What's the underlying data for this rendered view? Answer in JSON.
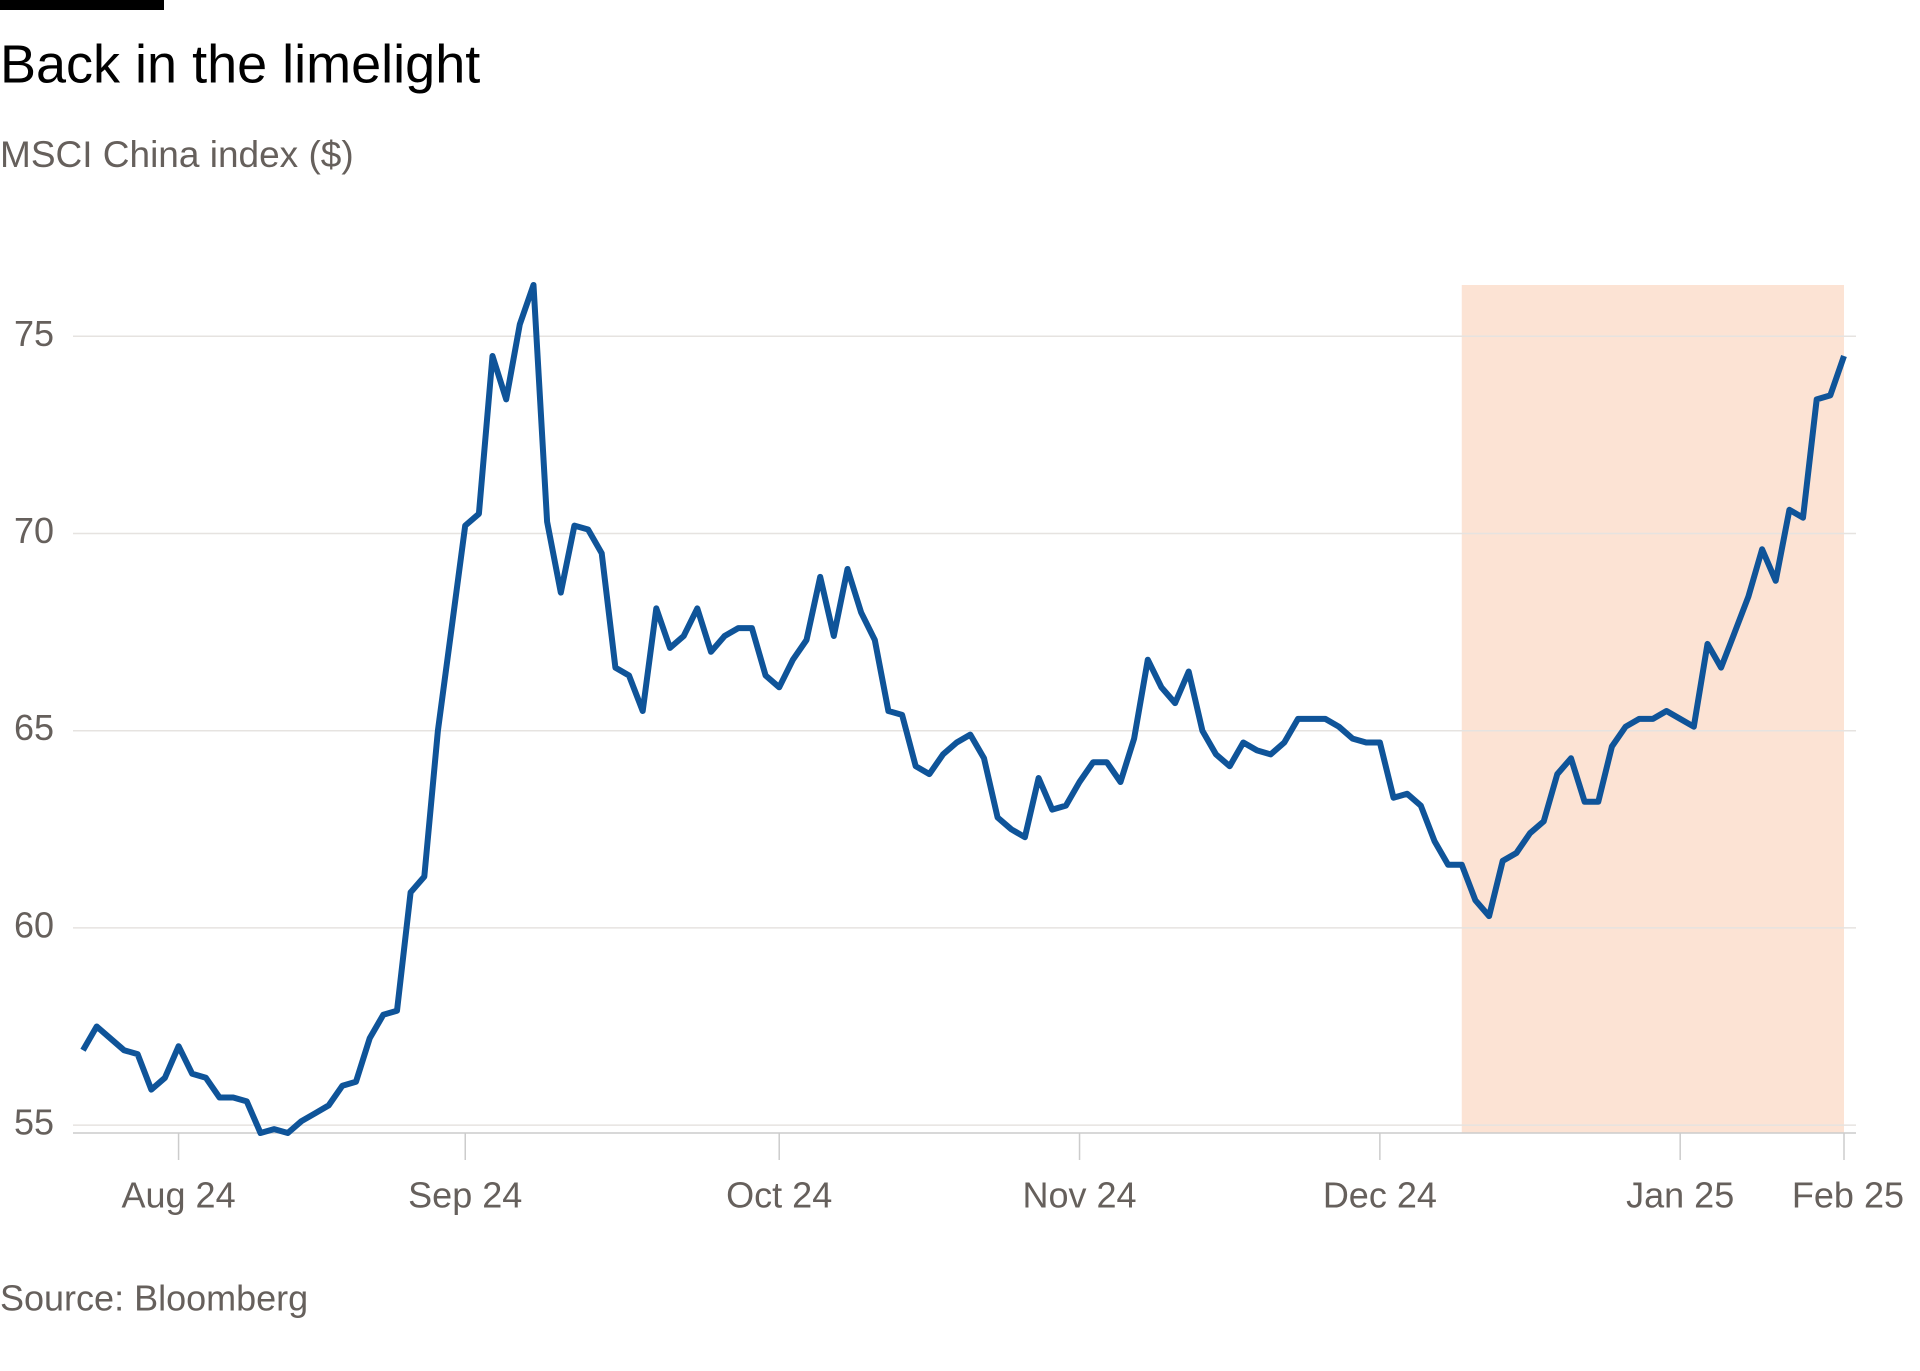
{
  "chart_data": {
    "type": "line",
    "title": "Back in the limelight",
    "subtitle": "MSCI China index ($)",
    "source": "Source: Bloomberg",
    "categories": [
      null,
      null,
      null,
      null,
      null,
      null,
      null,
      "Aug 24",
      null,
      null,
      null,
      null,
      null,
      null,
      null,
      null,
      null,
      null,
      null,
      null,
      null,
      null,
      null,
      null,
      null,
      null,
      null,
      null,
      "Sep 24",
      null,
      null,
      null,
      null,
      null,
      null,
      null,
      null,
      null,
      null,
      null,
      null,
      null,
      null,
      null,
      null,
      null,
      null,
      null,
      null,
      null,
      null,
      "Oct 24",
      null,
      null,
      null,
      null,
      null,
      null,
      null,
      null,
      null,
      null,
      null,
      null,
      null,
      null,
      null,
      null,
      null,
      null,
      null,
      null,
      null,
      "Nov 24",
      null,
      null,
      null,
      null,
      null,
      null,
      null,
      null,
      null,
      null,
      null,
      null,
      null,
      null,
      null,
      null,
      null,
      null,
      null,
      null,
      null,
      "Dec 24",
      null,
      null,
      null,
      null,
      null,
      null,
      null,
      null,
      null,
      null,
      null,
      null,
      null,
      null,
      null,
      null,
      null,
      null,
      null,
      null,
      null,
      "Jan 25",
      null,
      null,
      null,
      null,
      null,
      null,
      null,
      null,
      null,
      null,
      null,
      "Feb 25"
    ],
    "series": [
      {
        "name": "MSCI China index",
        "color": "#0f5499",
        "values": [
          56.9,
          57.5,
          57.2,
          56.9,
          56.8,
          55.9,
          56.2,
          57.0,
          56.3,
          56.2,
          55.7,
          55.7,
          55.6,
          54.8,
          54.9,
          54.8,
          55.1,
          55.3,
          55.5,
          56.0,
          56.1,
          57.2,
          57.8,
          57.9,
          60.9,
          61.3,
          65.0,
          67.6,
          70.2,
          70.5,
          74.5,
          73.4,
          75.3,
          76.3,
          70.3,
          68.5,
          70.2,
          70.1,
          69.5,
          66.6,
          66.4,
          65.5,
          68.1,
          67.1,
          67.4,
          68.1,
          67.0,
          67.4,
          67.6,
          67.6,
          66.4,
          66.1,
          66.8,
          67.3,
          68.9,
          67.4,
          69.1,
          68.0,
          67.3,
          65.5,
          65.4,
          64.1,
          63.9,
          64.4,
          64.7,
          64.9,
          64.3,
          62.8,
          62.5,
          62.3,
          63.8,
          63.0,
          63.1,
          63.7,
          64.2,
          64.2,
          63.7,
          64.8,
          66.8,
          66.1,
          65.7,
          66.5,
          65.0,
          64.4,
          64.1,
          64.7,
          64.5,
          64.4,
          64.7,
          65.3,
          65.3,
          65.3,
          65.1,
          64.8,
          64.7,
          64.7,
          63.3,
          63.4,
          63.1,
          62.2,
          61.6,
          61.6,
          60.7,
          60.3,
          61.7,
          61.9,
          62.4,
          62.7,
          63.9,
          64.3,
          63.2,
          63.2,
          64.6,
          65.1,
          65.3,
          65.3,
          65.5,
          65.3,
          65.1,
          67.2,
          66.6,
          67.5,
          68.4,
          69.6,
          68.8,
          70.6,
          70.4,
          73.4,
          73.5,
          74.5
        ]
      }
    ],
    "ylim": [
      54.8,
      76.3
    ],
    "yticks": [
      55,
      60,
      65,
      70,
      75
    ],
    "grid": true,
    "highlight": {
      "from": 101,
      "to": 129,
      "color": "#fce3d4"
    }
  }
}
